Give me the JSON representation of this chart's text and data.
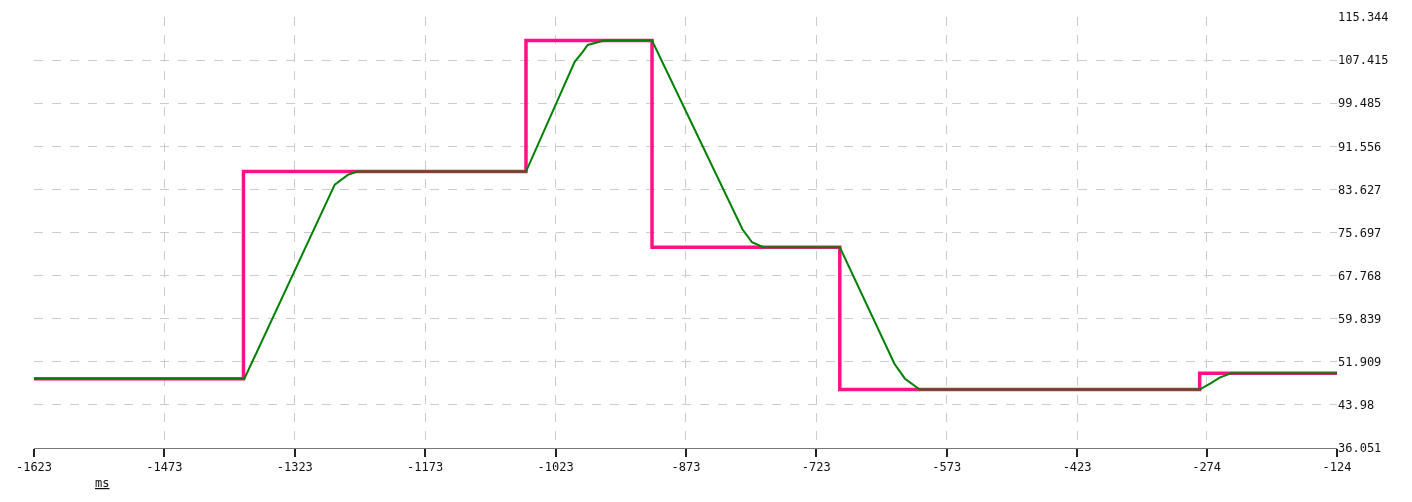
{
  "chart_data": {
    "type": "line",
    "xlabel": "ms",
    "xlim": [
      -1623,
      -124
    ],
    "xticks": [
      -1623,
      -1473,
      -1323,
      -1173,
      -1023,
      -873,
      -723,
      -573,
      -423,
      -274,
      -124
    ],
    "ylim": [
      36.051,
      115.344
    ],
    "yticks": [
      36.051,
      43.98,
      51.909,
      59.839,
      67.768,
      75.697,
      83.627,
      91.556,
      99.485,
      107.415,
      115.344
    ],
    "grid": true,
    "marker": "none",
    "line_style": "solid",
    "series": [
      {
        "color": "#ff1088",
        "x": [
          -1623,
          -1382,
          -1382,
          -1057,
          -1057,
          -912,
          -912,
          -696,
          -696,
          -282,
          -282,
          -124
        ],
        "values": [
          48.8,
          48.8,
          86.9,
          86.9,
          111.0,
          111.0,
          73.0,
          73.0,
          46.8,
          46.8,
          49.8,
          49.8
        ]
      },
      {
        "color": "#008000",
        "x": [
          -1623,
          -1381,
          -1277,
          -1262,
          -1251,
          -1057,
          -1001,
          -992,
          -986,
          -967,
          -912,
          -808,
          -797,
          -784,
          -696,
          -633,
          -621,
          -604,
          -282,
          -270,
          -259,
          -246,
          -124
        ],
        "values": [
          48.8,
          48.8,
          84.5,
          86.3,
          86.9,
          86.9,
          107.1,
          108.9,
          110.2,
          111.0,
          111.0,
          76.3,
          73.9,
          73.0,
          73.0,
          51.5,
          48.8,
          46.8,
          46.8,
          47.9,
          49.0,
          49.8,
          49.8
        ]
      }
    ]
  }
}
